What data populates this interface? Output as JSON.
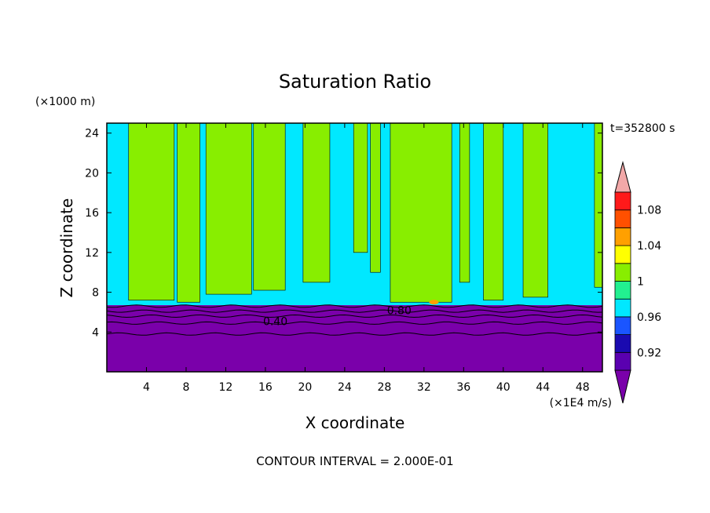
{
  "chart_data": {
    "type": "heatmap",
    "title": "Saturation Ratio",
    "xlabel": "X coordinate",
    "ylabel": "Z coordinate",
    "x_unit": "(×1E4 m/s)",
    "y_unit": "(×1000 m)",
    "time_label": "t=352800 s",
    "footer": "CONTOUR INTERVAL = 2.000E-01",
    "xlim": [
      0,
      50
    ],
    "ylim": [
      0,
      25
    ],
    "x_ticks": [
      4,
      8,
      12,
      16,
      20,
      24,
      28,
      32,
      36,
      40,
      44,
      48
    ],
    "y_ticks": [
      4,
      8,
      12,
      16,
      20,
      24
    ],
    "contour_labels": [
      {
        "text": "0.40",
        "x": 17,
        "y": 5.1
      },
      {
        "text": "0.80",
        "x": 29.5,
        "y": 6.2
      }
    ],
    "colorbar": {
      "levels": [
        0.9,
        0.92,
        0.94,
        0.96,
        0.98,
        1.0,
        1.02,
        1.04,
        1.06,
        1.08,
        1.1
      ],
      "tick_labels": [
        {
          "text": "1.08",
          "value": 1.08
        },
        {
          "text": "1.04",
          "value": 1.04
        },
        {
          "text": "1",
          "value": 1.0
        },
        {
          "text": "0.96",
          "value": 0.96
        },
        {
          "text": "0.92",
          "value": 0.92
        }
      ],
      "under_color": "#7a00aa",
      "over_color": "#f2a8a8",
      "colors": [
        "#5a00b0",
        "#1a0ab0",
        "#1a55ff",
        "#00e8ff",
        "#22f090",
        "#88ee00",
        "#ffff00",
        "#ffa000",
        "#ff5000",
        "#ff1a1a"
      ]
    },
    "field": {
      "base_value": 0.97,
      "surface_value": 0.85,
      "surface_top": 6.7,
      "plume_value": 1.01,
      "plumes": [
        {
          "x0": 2.2,
          "x1": 6.8,
          "z0": 7.2
        },
        {
          "x0": 7.1,
          "x1": 9.4,
          "z0": 7.0
        },
        {
          "x0": 10.0,
          "x1": 14.6,
          "z0": 7.8
        },
        {
          "x0": 14.8,
          "x1": 18.0,
          "z0": 8.2
        },
        {
          "x0": 19.8,
          "x1": 22.5,
          "z0": 9.0
        },
        {
          "x0": 24.9,
          "x1": 26.3,
          "z0": 12.0
        },
        {
          "x0": 26.6,
          "x1": 27.6,
          "z0": 10.0
        },
        {
          "x0": 28.6,
          "x1": 34.8,
          "z0": 7.0
        },
        {
          "x0": 35.6,
          "x1": 36.6,
          "z0": 9.0
        },
        {
          "x0": 38.0,
          "x1": 40.0,
          "z0": 7.2
        },
        {
          "x0": 42.0,
          "x1": 44.5,
          "z0": 7.5
        },
        {
          "x0": 49.2,
          "x1": 50.0,
          "z0": 8.5
        }
      ],
      "warm_patch": {
        "x": 33.0,
        "z": 7.0,
        "value": 1.05
      },
      "contour_levels_z": [
        3.8,
        4.9,
        5.6,
        6.1,
        6.6
      ]
    }
  }
}
